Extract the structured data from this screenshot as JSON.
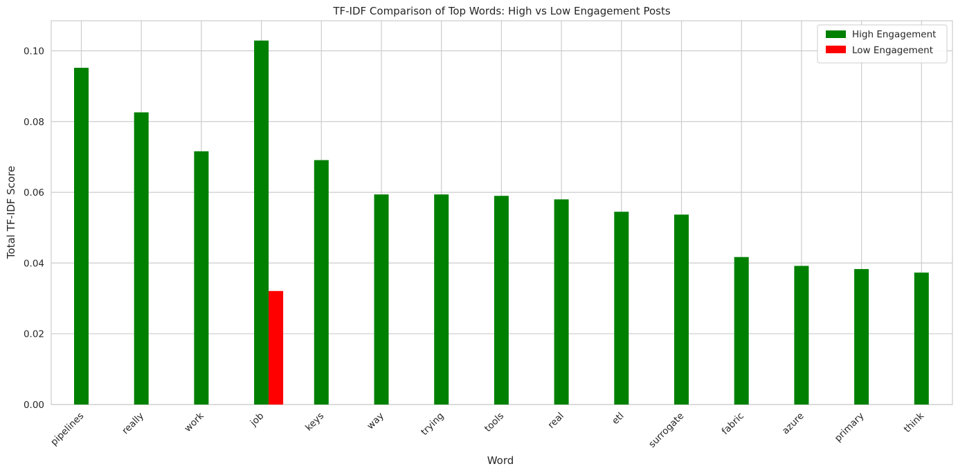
{
  "chart_data": {
    "type": "bar",
    "title": "TF-IDF Comparison of Top Words: High vs Low Engagement Posts",
    "xlabel": "Word",
    "ylabel": "Total TF-IDF Score",
    "categories": [
      "pipelines",
      "really",
      "work",
      "job",
      "keys",
      "way",
      "trying",
      "tools",
      "real",
      "etl",
      "surrogate",
      "fabric",
      "azure",
      "primary",
      "think"
    ],
    "series": [
      {
        "name": "High Engagement",
        "color": "#008000",
        "values": [
          0.0952,
          0.0826,
          0.0716,
          0.1029,
          0.0691,
          0.0594,
          0.0594,
          0.059,
          0.058,
          0.0545,
          0.0537,
          0.0417,
          0.0392,
          0.0383,
          0.0373
        ]
      },
      {
        "name": "Low Engagement",
        "color": "#ff0000",
        "values": [
          0,
          0,
          0,
          0.0321,
          0,
          0,
          0,
          0,
          0,
          0,
          0,
          0,
          0,
          0,
          0
        ]
      }
    ],
    "ylim": [
      0,
      0.1085
    ],
    "yticks": [
      "0.00",
      "0.02",
      "0.04",
      "0.06",
      "0.08",
      "0.10"
    ],
    "ytick_values": [
      0,
      0.02,
      0.04,
      0.06,
      0.08,
      0.1
    ],
    "grid": true,
    "legend_position": "top-right"
  }
}
